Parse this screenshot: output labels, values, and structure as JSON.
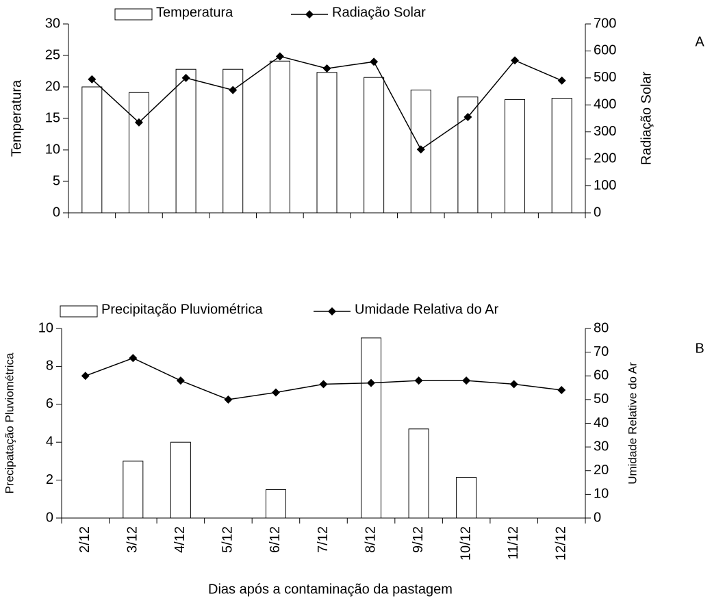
{
  "chart_data": [
    {
      "type": "combo",
      "annotation": "A",
      "ylabel": "Temperatura",
      "y2label": "Radiação Solar",
      "categories": [
        null,
        null,
        null,
        null,
        null,
        null,
        null,
        null,
        null,
        null,
        null
      ],
      "ylim": [
        0,
        30
      ],
      "yticks": [
        0,
        5,
        10,
        15,
        20,
        25,
        30
      ],
      "y2lim": [
        0,
        700
      ],
      "y2ticks": [
        0,
        100,
        200,
        300,
        400,
        500,
        600,
        700
      ],
      "series": [
        {
          "name": "Temperatura",
          "type": "bar",
          "color": "#ffffff",
          "axis": "y",
          "values": [
            20,
            19.1,
            22.8,
            22.8,
            24.1,
            22.3,
            21.5,
            19.5,
            18.4,
            18,
            18.2
          ]
        },
        {
          "name": "Radiação Solar",
          "type": "line",
          "color": "#000000",
          "axis": "y2",
          "values": [
            495,
            335,
            500,
            455,
            580,
            535,
            560,
            235,
            355,
            565,
            490
          ]
        }
      ]
    },
    {
      "type": "combo",
      "annotation": "B",
      "ylabel": "Precipatação Pluviométrica",
      "y2label": "Umidade Relative do Ar",
      "xlabel": "Dias após a contaminação da pastagem",
      "categories": [
        "2/12",
        "3/12",
        "4/12",
        "5/12",
        "6/12",
        "7/12",
        "8/12",
        "9/12",
        "10/12",
        "11/12",
        "12/12"
      ],
      "ylim": [
        0,
        10
      ],
      "yticks": [
        0,
        2,
        4,
        6,
        8,
        10
      ],
      "y2lim": [
        0,
        80
      ],
      "y2ticks": [
        0,
        10,
        20,
        30,
        40,
        50,
        60,
        70,
        80
      ],
      "series": [
        {
          "name": "Precipitação Pluviométrica",
          "type": "bar",
          "color": "#ffffff",
          "axis": "y",
          "values": [
            0,
            3,
            4,
            0,
            1.5,
            0,
            9.5,
            4.7,
            2.15,
            0,
            0
          ]
        },
        {
          "name": "Umidade Relativa do Ar",
          "type": "line",
          "color": "#000000",
          "axis": "y2",
          "values": [
            60,
            67.5,
            58,
            50,
            53,
            56.5,
            57,
            58,
            58,
            56.5,
            54
          ]
        }
      ]
    }
  ]
}
